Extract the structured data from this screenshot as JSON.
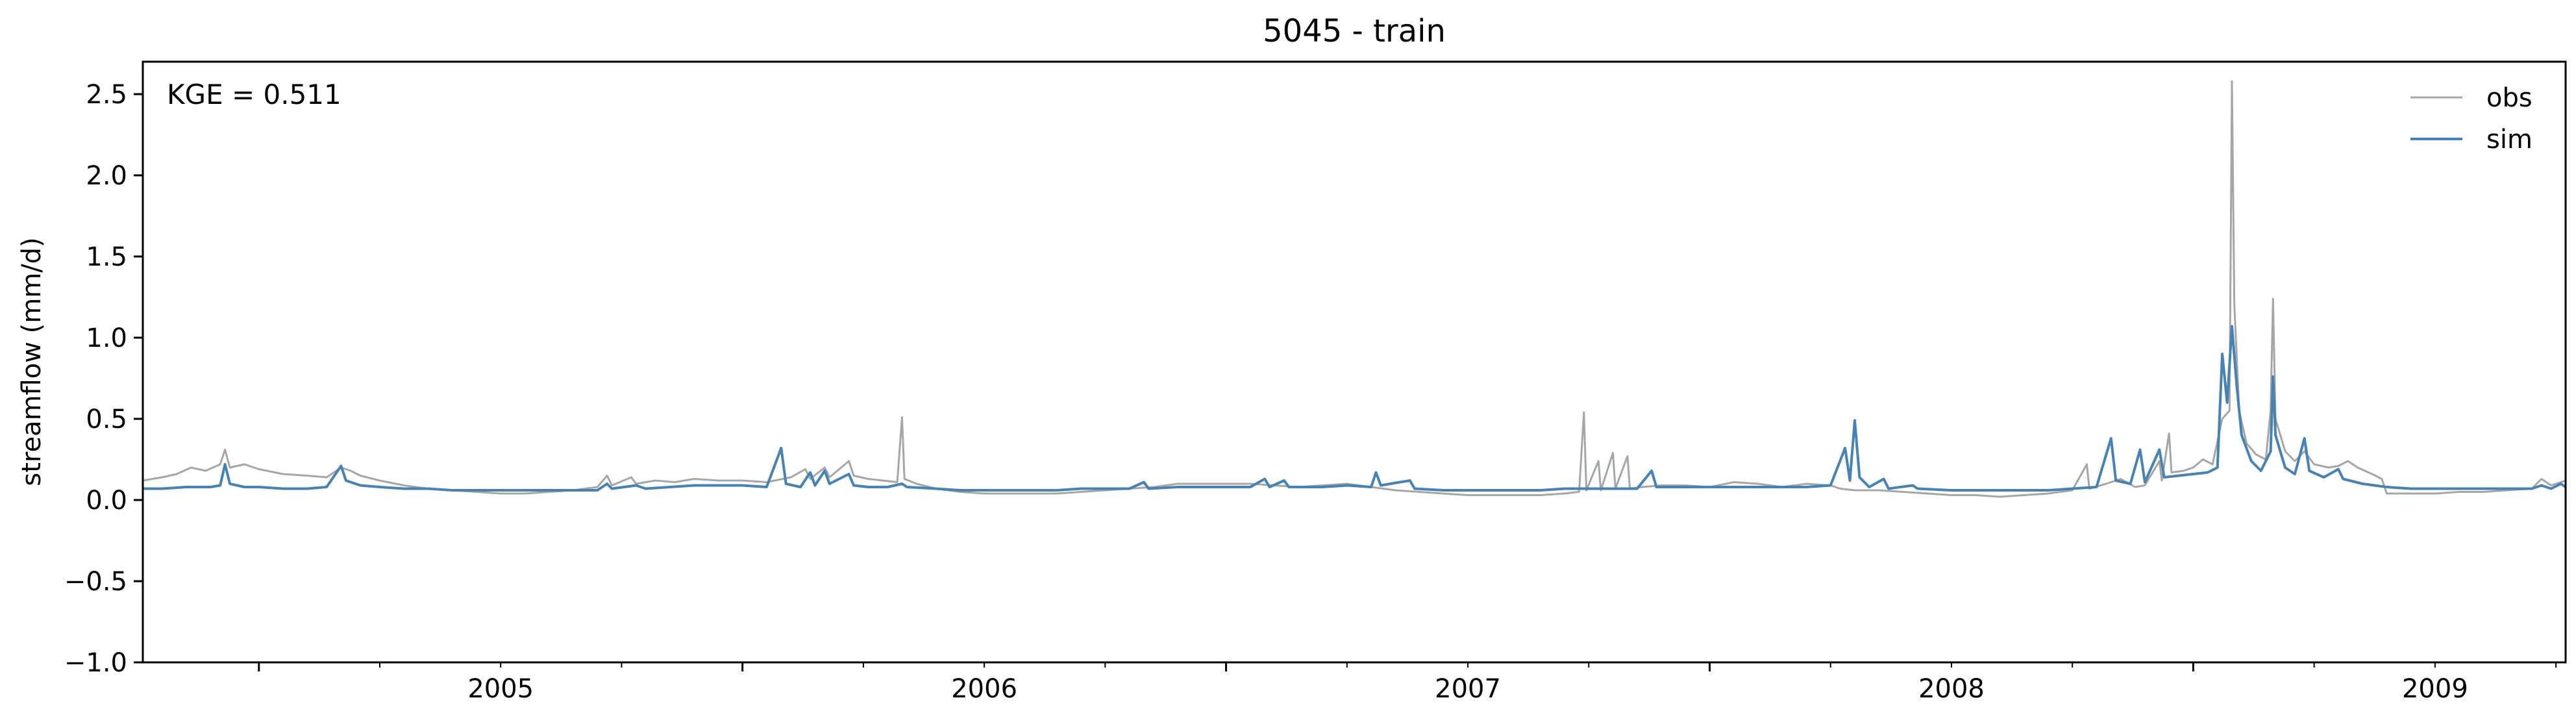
{
  "chart_data": {
    "type": "line",
    "title": "5045 - train",
    "xlabel": "",
    "ylabel": "streamflow (mm/d)",
    "annotation": "KGE = 0.511",
    "x_start": 2004.76,
    "x_end": 2009.77,
    "ylim": [
      -1.0,
      2.7
    ],
    "yticks": [
      -1.0,
      -0.5,
      0.0,
      0.5,
      1.0,
      1.5,
      2.0,
      2.5
    ],
    "ytick_labels": [
      "−1.0",
      "−0.5",
      "0.0",
      "0.5",
      "1.0",
      "1.5",
      "2.0",
      "2.5"
    ],
    "xticks": [
      2005,
      2006,
      2007,
      2008,
      2009
    ],
    "xtick_labels": [
      "2005",
      "2006",
      "2007",
      "2008",
      "2009"
    ],
    "legend_position": "top-right",
    "series": [
      {
        "name": "obs",
        "color": "#a6a6a6",
        "points": [
          [
            2004.76,
            0.12
          ],
          [
            2004.8,
            0.14
          ],
          [
            2004.83,
            0.16
          ],
          [
            2004.86,
            0.2
          ],
          [
            2004.89,
            0.18
          ],
          [
            2004.92,
            0.22
          ],
          [
            2004.93,
            0.31
          ],
          [
            2004.94,
            0.2
          ],
          [
            2004.97,
            0.22
          ],
          [
            2005.0,
            0.19
          ],
          [
            2005.05,
            0.16
          ],
          [
            2005.1,
            0.15
          ],
          [
            2005.14,
            0.14
          ],
          [
            2005.17,
            0.2
          ],
          [
            2005.19,
            0.18
          ],
          [
            2005.21,
            0.15
          ],
          [
            2005.25,
            0.12
          ],
          [
            2005.3,
            0.09
          ],
          [
            2005.35,
            0.07
          ],
          [
            2005.4,
            0.06
          ],
          [
            2005.45,
            0.05
          ],
          [
            2005.5,
            0.04
          ],
          [
            2005.55,
            0.04
          ],
          [
            2005.6,
            0.05
          ],
          [
            2005.65,
            0.06
          ],
          [
            2005.7,
            0.08
          ],
          [
            2005.72,
            0.15
          ],
          [
            2005.73,
            0.09
          ],
          [
            2005.77,
            0.14
          ],
          [
            2005.78,
            0.1
          ],
          [
            2005.82,
            0.12
          ],
          [
            2005.86,
            0.11
          ],
          [
            2005.9,
            0.13
          ],
          [
            2005.95,
            0.12
          ],
          [
            2006.0,
            0.12
          ],
          [
            2006.05,
            0.11
          ],
          [
            2006.1,
            0.14
          ],
          [
            2006.13,
            0.19
          ],
          [
            2006.14,
            0.13
          ],
          [
            2006.17,
            0.2
          ],
          [
            2006.18,
            0.14
          ],
          [
            2006.22,
            0.24
          ],
          [
            2006.23,
            0.15
          ],
          [
            2006.26,
            0.13
          ],
          [
            2006.29,
            0.12
          ],
          [
            2006.32,
            0.11
          ],
          [
            2006.33,
            0.51
          ],
          [
            2006.335,
            0.13
          ],
          [
            2006.36,
            0.1
          ],
          [
            2006.4,
            0.07
          ],
          [
            2006.45,
            0.05
          ],
          [
            2006.5,
            0.04
          ],
          [
            2006.55,
            0.04
          ],
          [
            2006.6,
            0.04
          ],
          [
            2006.65,
            0.04
          ],
          [
            2006.7,
            0.05
          ],
          [
            2006.75,
            0.06
          ],
          [
            2006.8,
            0.07
          ],
          [
            2006.85,
            0.08
          ],
          [
            2006.9,
            0.1
          ],
          [
            2006.95,
            0.1
          ],
          [
            2007.0,
            0.1
          ],
          [
            2007.05,
            0.1
          ],
          [
            2007.1,
            0.09
          ],
          [
            2007.15,
            0.08
          ],
          [
            2007.2,
            0.09
          ],
          [
            2007.25,
            0.1
          ],
          [
            2007.3,
            0.08
          ],
          [
            2007.35,
            0.06
          ],
          [
            2007.4,
            0.05
          ],
          [
            2007.45,
            0.04
          ],
          [
            2007.5,
            0.03
          ],
          [
            2007.55,
            0.03
          ],
          [
            2007.6,
            0.03
          ],
          [
            2007.65,
            0.03
          ],
          [
            2007.7,
            0.04
          ],
          [
            2007.73,
            0.05
          ],
          [
            2007.74,
            0.54
          ],
          [
            2007.745,
            0.06
          ],
          [
            2007.77,
            0.24
          ],
          [
            2007.775,
            0.06
          ],
          [
            2007.8,
            0.29
          ],
          [
            2007.805,
            0.07
          ],
          [
            2007.83,
            0.27
          ],
          [
            2007.835,
            0.07
          ],
          [
            2007.86,
            0.08
          ],
          [
            2007.9,
            0.09
          ],
          [
            2007.95,
            0.09
          ],
          [
            2008.0,
            0.08
          ],
          [
            2008.05,
            0.11
          ],
          [
            2008.1,
            0.1
          ],
          [
            2008.15,
            0.08
          ],
          [
            2008.2,
            0.1
          ],
          [
            2008.25,
            0.09
          ],
          [
            2008.27,
            0.07
          ],
          [
            2008.3,
            0.06
          ],
          [
            2008.35,
            0.06
          ],
          [
            2008.4,
            0.05
          ],
          [
            2008.45,
            0.04
          ],
          [
            2008.5,
            0.03
          ],
          [
            2008.55,
            0.03
          ],
          [
            2008.6,
            0.02
          ],
          [
            2008.65,
            0.03
          ],
          [
            2008.7,
            0.04
          ],
          [
            2008.75,
            0.06
          ],
          [
            2008.78,
            0.22
          ],
          [
            2008.785,
            0.07
          ],
          [
            2008.82,
            0.1
          ],
          [
            2008.85,
            0.13
          ],
          [
            2008.88,
            0.08
          ],
          [
            2008.9,
            0.09
          ],
          [
            2008.93,
            0.24
          ],
          [
            2008.935,
            0.12
          ],
          [
            2008.95,
            0.41
          ],
          [
            2008.955,
            0.17
          ],
          [
            2008.98,
            0.18
          ],
          [
            2009.0,
            0.2
          ],
          [
            2009.02,
            0.25
          ],
          [
            2009.04,
            0.22
          ],
          [
            2009.06,
            0.5
          ],
          [
            2009.075,
            0.55
          ],
          [
            2009.08,
            2.58
          ],
          [
            2009.085,
            1.2
          ],
          [
            2009.095,
            0.55
          ],
          [
            2009.11,
            0.35
          ],
          [
            2009.13,
            0.28
          ],
          [
            2009.15,
            0.25
          ],
          [
            2009.16,
            0.55
          ],
          [
            2009.165,
            1.24
          ],
          [
            2009.17,
            0.5
          ],
          [
            2009.19,
            0.3
          ],
          [
            2009.21,
            0.24
          ],
          [
            2009.23,
            0.3
          ],
          [
            2009.25,
            0.22
          ],
          [
            2009.28,
            0.2
          ],
          [
            2009.3,
            0.21
          ],
          [
            2009.32,
            0.24
          ],
          [
            2009.34,
            0.2
          ],
          [
            2009.37,
            0.16
          ],
          [
            2009.39,
            0.13
          ],
          [
            2009.4,
            0.04
          ],
          [
            2009.45,
            0.04
          ],
          [
            2009.5,
            0.04
          ],
          [
            2009.55,
            0.05
          ],
          [
            2009.6,
            0.05
          ],
          [
            2009.65,
            0.06
          ],
          [
            2009.7,
            0.07
          ],
          [
            2009.72,
            0.13
          ],
          [
            2009.74,
            0.09
          ],
          [
            2009.77,
            0.12
          ]
        ]
      },
      {
        "name": "sim",
        "color": "#4682b4",
        "points": [
          [
            2004.76,
            0.07
          ],
          [
            2004.8,
            0.07
          ],
          [
            2004.85,
            0.08
          ],
          [
            2004.9,
            0.08
          ],
          [
            2004.92,
            0.09
          ],
          [
            2004.93,
            0.22
          ],
          [
            2004.94,
            0.1
          ],
          [
            2004.97,
            0.08
          ],
          [
            2005.0,
            0.08
          ],
          [
            2005.05,
            0.07
          ],
          [
            2005.1,
            0.07
          ],
          [
            2005.14,
            0.08
          ],
          [
            2005.17,
            0.21
          ],
          [
            2005.18,
            0.12
          ],
          [
            2005.21,
            0.09
          ],
          [
            2005.25,
            0.08
          ],
          [
            2005.3,
            0.07
          ],
          [
            2005.35,
            0.07
          ],
          [
            2005.4,
            0.06
          ],
          [
            2005.45,
            0.06
          ],
          [
            2005.5,
            0.06
          ],
          [
            2005.55,
            0.06
          ],
          [
            2005.6,
            0.06
          ],
          [
            2005.65,
            0.06
          ],
          [
            2005.7,
            0.06
          ],
          [
            2005.72,
            0.1
          ],
          [
            2005.73,
            0.07
          ],
          [
            2005.78,
            0.09
          ],
          [
            2005.8,
            0.07
          ],
          [
            2005.85,
            0.08
          ],
          [
            2005.9,
            0.09
          ],
          [
            2005.95,
            0.09
          ],
          [
            2006.0,
            0.09
          ],
          [
            2006.05,
            0.08
          ],
          [
            2006.08,
            0.32
          ],
          [
            2006.09,
            0.1
          ],
          [
            2006.12,
            0.08
          ],
          [
            2006.14,
            0.17
          ],
          [
            2006.15,
            0.09
          ],
          [
            2006.17,
            0.18
          ],
          [
            2006.18,
            0.1
          ],
          [
            2006.22,
            0.16
          ],
          [
            2006.23,
            0.09
          ],
          [
            2006.26,
            0.08
          ],
          [
            2006.3,
            0.08
          ],
          [
            2006.33,
            0.1
          ],
          [
            2006.34,
            0.08
          ],
          [
            2006.4,
            0.07
          ],
          [
            2006.45,
            0.06
          ],
          [
            2006.5,
            0.06
          ],
          [
            2006.55,
            0.06
          ],
          [
            2006.6,
            0.06
          ],
          [
            2006.65,
            0.06
          ],
          [
            2006.7,
            0.07
          ],
          [
            2006.75,
            0.07
          ],
          [
            2006.8,
            0.07
          ],
          [
            2006.83,
            0.11
          ],
          [
            2006.84,
            0.07
          ],
          [
            2006.9,
            0.08
          ],
          [
            2006.95,
            0.08
          ],
          [
            2007.0,
            0.08
          ],
          [
            2007.05,
            0.08
          ],
          [
            2007.08,
            0.13
          ],
          [
            2007.09,
            0.08
          ],
          [
            2007.12,
            0.12
          ],
          [
            2007.13,
            0.08
          ],
          [
            2007.2,
            0.08
          ],
          [
            2007.25,
            0.09
          ],
          [
            2007.3,
            0.08
          ],
          [
            2007.31,
            0.17
          ],
          [
            2007.32,
            0.09
          ],
          [
            2007.38,
            0.12
          ],
          [
            2007.39,
            0.07
          ],
          [
            2007.45,
            0.06
          ],
          [
            2007.5,
            0.06
          ],
          [
            2007.55,
            0.06
          ],
          [
            2007.6,
            0.06
          ],
          [
            2007.65,
            0.06
          ],
          [
            2007.7,
            0.07
          ],
          [
            2007.75,
            0.07
          ],
          [
            2007.8,
            0.07
          ],
          [
            2007.85,
            0.07
          ],
          [
            2007.88,
            0.18
          ],
          [
            2007.89,
            0.08
          ],
          [
            2007.95,
            0.08
          ],
          [
            2008.0,
            0.08
          ],
          [
            2008.05,
            0.08
          ],
          [
            2008.1,
            0.08
          ],
          [
            2008.15,
            0.08
          ],
          [
            2008.2,
            0.08
          ],
          [
            2008.25,
            0.09
          ],
          [
            2008.28,
            0.32
          ],
          [
            2008.29,
            0.12
          ],
          [
            2008.3,
            0.49
          ],
          [
            2008.31,
            0.14
          ],
          [
            2008.33,
            0.08
          ],
          [
            2008.36,
            0.13
          ],
          [
            2008.37,
            0.07
          ],
          [
            2008.42,
            0.09
          ],
          [
            2008.43,
            0.07
          ],
          [
            2008.5,
            0.06
          ],
          [
            2008.55,
            0.06
          ],
          [
            2008.6,
            0.06
          ],
          [
            2008.65,
            0.06
          ],
          [
            2008.7,
            0.06
          ],
          [
            2008.75,
            0.07
          ],
          [
            2008.8,
            0.08
          ],
          [
            2008.83,
            0.38
          ],
          [
            2008.84,
            0.12
          ],
          [
            2008.87,
            0.1
          ],
          [
            2008.89,
            0.31
          ],
          [
            2008.9,
            0.11
          ],
          [
            2008.93,
            0.31
          ],
          [
            2008.94,
            0.14
          ],
          [
            2008.97,
            0.15
          ],
          [
            2009.0,
            0.16
          ],
          [
            2009.03,
            0.17
          ],
          [
            2009.05,
            0.2
          ],
          [
            2009.06,
            0.9
          ],
          [
            2009.07,
            0.6
          ],
          [
            2009.08,
            1.07
          ],
          [
            2009.09,
            0.7
          ],
          [
            2009.1,
            0.4
          ],
          [
            2009.12,
            0.24
          ],
          [
            2009.14,
            0.18
          ],
          [
            2009.16,
            0.3
          ],
          [
            2009.165,
            0.76
          ],
          [
            2009.17,
            0.4
          ],
          [
            2009.19,
            0.2
          ],
          [
            2009.21,
            0.16
          ],
          [
            2009.23,
            0.38
          ],
          [
            2009.24,
            0.18
          ],
          [
            2009.27,
            0.14
          ],
          [
            2009.3,
            0.19
          ],
          [
            2009.31,
            0.13
          ],
          [
            2009.35,
            0.1
          ],
          [
            2009.4,
            0.08
          ],
          [
            2009.45,
            0.07
          ],
          [
            2009.5,
            0.07
          ],
          [
            2009.55,
            0.07
          ],
          [
            2009.6,
            0.07
          ],
          [
            2009.65,
            0.07
          ],
          [
            2009.7,
            0.07
          ],
          [
            2009.72,
            0.09
          ],
          [
            2009.74,
            0.07
          ],
          [
            2009.76,
            0.1
          ],
          [
            2009.77,
            0.08
          ]
        ]
      }
    ]
  }
}
